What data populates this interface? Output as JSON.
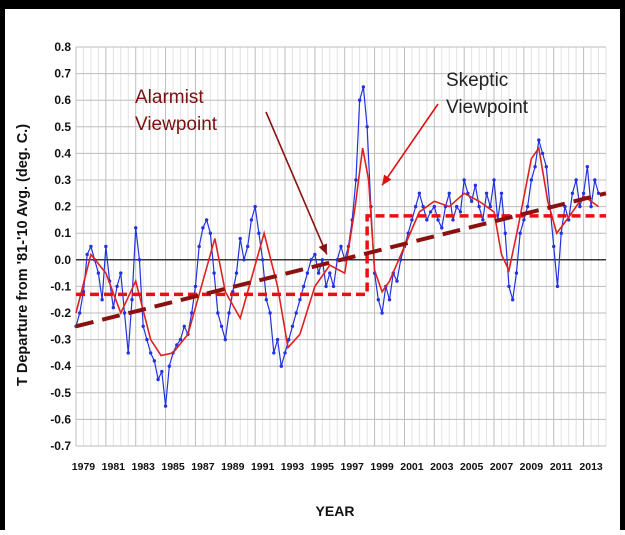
{
  "chart_data": {
    "type": "line",
    "xlabel": "YEAR",
    "ylabel": "T Departure from '81-'10 Avg. (deg. C.)",
    "xlim": [
      1979,
      2014.5
    ],
    "ylim": [
      -0.7,
      0.8
    ],
    "x_tick_labels": [
      "1979",
      "1981",
      "1983",
      "1985",
      "1987",
      "1989",
      "1991",
      "1993",
      "1995",
      "1997",
      "1999",
      "2001",
      "2003",
      "2005",
      "2007",
      "2009",
      "2011",
      "2013"
    ],
    "y_tick_labels": [
      "0.8",
      "0.7",
      "0.6",
      "0.5",
      "0.4",
      "0.3",
      "0.2",
      "0.1",
      "0.0",
      "-0.1",
      "-0.2",
      "-0.3",
      "-0.4",
      "-0.5",
      "-0.6",
      "-0.7"
    ],
    "grid": true,
    "colors": {
      "monthly": "#2233dd",
      "smooth": "#e02020",
      "alarmist": "#8b1010",
      "skeptic": "#e01010",
      "step": "#e81010"
    },
    "series": [
      {
        "role": "monthly",
        "x": [
          1979.0,
          1979.25,
          1979.5,
          1979.75,
          1980.0,
          1980.25,
          1980.5,
          1980.75,
          1981.0,
          1981.25,
          1981.5,
          1981.75,
          1982.0,
          1982.25,
          1982.5,
          1982.75,
          1983.0,
          1983.25,
          1983.5,
          1983.75,
          1984.0,
          1984.25,
          1984.5,
          1984.75,
          1985.0,
          1985.25,
          1985.5,
          1985.75,
          1986.0,
          1986.25,
          1986.5,
          1986.75,
          1987.0,
          1987.25,
          1987.5,
          1987.75,
          1988.0,
          1988.25,
          1988.5,
          1988.75,
          1989.0,
          1989.25,
          1989.5,
          1989.75,
          1990.0,
          1990.25,
          1990.5,
          1990.75,
          1991.0,
          1991.25,
          1991.5,
          1991.75,
          1992.0,
          1992.25,
          1992.5,
          1992.75,
          1993.0,
          1993.25,
          1993.5,
          1993.75,
          1994.0,
          1994.25,
          1994.5,
          1994.75,
          1995.0,
          1995.25,
          1995.5,
          1995.75,
          1996.0,
          1996.25,
          1996.5,
          1996.75,
          1997.0,
          1997.25,
          1997.5,
          1997.75,
          1998.0,
          1998.25,
          1998.5,
          1998.75,
          1999.0,
          1999.25,
          1999.5,
          1999.75,
          2000.0,
          2000.25,
          2000.5,
          2000.75,
          2001.0,
          2001.25,
          2001.5,
          2001.75,
          2002.0,
          2002.25,
          2002.5,
          2002.75,
          2003.0,
          2003.25,
          2003.5,
          2003.75,
          2004.0,
          2004.25,
          2004.5,
          2004.75,
          2005.0,
          2005.25,
          2005.5,
          2005.75,
          2006.0,
          2006.25,
          2006.5,
          2006.75,
          2007.0,
          2007.25,
          2007.5,
          2007.75,
          2008.0,
          2008.25,
          2008.5,
          2008.75,
          2009.0,
          2009.25,
          2009.5,
          2009.75,
          2010.0,
          2010.25,
          2010.5,
          2010.75,
          2011.0,
          2011.25,
          2011.5,
          2011.75,
          2012.0,
          2012.25,
          2012.5,
          2012.75,
          2013.0,
          2013.25,
          2013.5,
          2013.75,
          2014.0
        ],
        "values": [
          -0.25,
          -0.2,
          -0.12,
          0.02,
          0.05,
          0.0,
          -0.05,
          -0.15,
          0.05,
          -0.08,
          -0.18,
          -0.1,
          -0.05,
          -0.2,
          -0.35,
          -0.15,
          0.12,
          0.0,
          -0.25,
          -0.3,
          -0.35,
          -0.38,
          -0.45,
          -0.42,
          -0.55,
          -0.4,
          -0.35,
          -0.32,
          -0.3,
          -0.25,
          -0.28,
          -0.2,
          -0.1,
          0.05,
          0.12,
          0.15,
          0.1,
          -0.05,
          -0.2,
          -0.25,
          -0.3,
          -0.2,
          -0.12,
          -0.05,
          0.08,
          0.0,
          0.05,
          0.15,
          0.2,
          0.1,
          0.0,
          -0.15,
          -0.2,
          -0.35,
          -0.3,
          -0.4,
          -0.35,
          -0.3,
          -0.25,
          -0.2,
          -0.15,
          -0.1,
          -0.05,
          0.0,
          0.02,
          -0.05,
          0.0,
          -0.1,
          -0.05,
          -0.1,
          0.0,
          0.05,
          0.0,
          0.05,
          0.15,
          0.3,
          0.6,
          0.65,
          0.5,
          0.2,
          -0.05,
          -0.15,
          -0.2,
          -0.1,
          -0.15,
          -0.05,
          -0.08,
          0.0,
          0.05,
          0.1,
          0.15,
          0.2,
          0.25,
          0.2,
          0.15,
          0.18,
          0.2,
          0.15,
          0.12,
          0.2,
          0.25,
          0.15,
          0.2,
          0.18,
          0.3,
          0.25,
          0.22,
          0.28,
          0.2,
          0.15,
          0.25,
          0.2,
          0.3,
          0.15,
          0.25,
          0.1,
          -0.1,
          -0.15,
          -0.05,
          0.1,
          0.15,
          0.2,
          0.3,
          0.35,
          0.45,
          0.4,
          0.35,
          0.2,
          0.05,
          -0.1,
          0.1,
          0.2,
          0.15,
          0.25,
          0.3,
          0.2,
          0.25,
          0.35,
          0.2,
          0.3,
          0.25
        ]
      },
      {
        "role": "smooth",
        "x": [
          1979.0,
          1980.0,
          1981.0,
          1982.0,
          1983.0,
          1984.0,
          1984.7,
          1985.5,
          1986.5,
          1987.5,
          1988.3,
          1989.0,
          1990.0,
          1991.0,
          1991.6,
          1992.5,
          1993.2,
          1994.0,
          1995.0,
          1996.0,
          1997.0,
          1997.7,
          1998.2,
          1998.6,
          1999.0,
          1999.5,
          2000.0,
          2001.0,
          2002.0,
          2003.0,
          2004.0,
          2005.0,
          2006.0,
          2007.0,
          2007.5,
          2008.0,
          2008.6,
          2009.5,
          2010.0,
          2010.6,
          2011.2,
          2012.0,
          2013.0,
          2014.0
        ],
        "values": [
          -0.2,
          0.02,
          -0.05,
          -0.2,
          -0.08,
          -0.3,
          -0.36,
          -0.35,
          -0.28,
          -0.08,
          0.08,
          -0.12,
          -0.22,
          -0.02,
          0.1,
          -0.1,
          -0.33,
          -0.28,
          -0.1,
          -0.02,
          -0.05,
          0.2,
          0.42,
          0.3,
          -0.04,
          -0.12,
          -0.08,
          0.05,
          0.18,
          0.22,
          0.2,
          0.25,
          0.22,
          0.18,
          0.02,
          -0.04,
          0.12,
          0.38,
          0.42,
          0.22,
          0.1,
          0.16,
          0.24,
          0.2
        ]
      }
    ],
    "trend_line": {
      "x": [
        1979.0,
        2014.5
      ],
      "values": [
        -0.25,
        0.25
      ]
    },
    "step_line": {
      "x": [
        1979.0,
        1998.5,
        1998.5,
        2014.5
      ],
      "values": [
        -0.13,
        -0.13,
        0.165,
        0.165
      ]
    },
    "annotations": [
      {
        "id": "alarmist",
        "lines": [
          "Alarmist",
          "Viewpoint"
        ],
        "arrow_to": [
          1995.8,
          0.02
        ]
      },
      {
        "id": "skeptic",
        "lines": [
          "Skeptic",
          "Viewpoint"
        ],
        "arrow_to": [
          1999.5,
          0.28
        ]
      }
    ]
  }
}
